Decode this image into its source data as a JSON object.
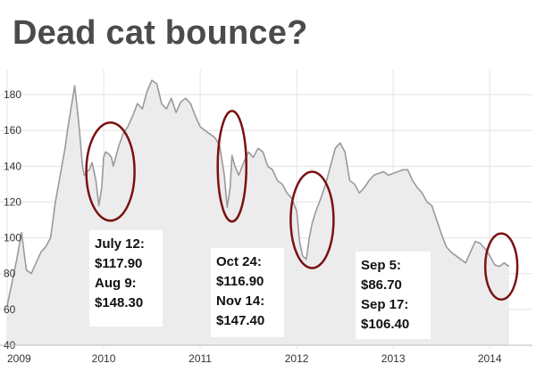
{
  "title": "Dead cat bounce?",
  "colors": {
    "line": "#9a9a9a",
    "area": "#ececec",
    "grid": "#e3e3e3",
    "circle": "#7a1212",
    "annotation_bg": "#ffffff"
  },
  "chart_data": {
    "type": "area",
    "title": "Dead cat bounce?",
    "xlabel": "",
    "ylabel": "",
    "xlim": [
      2009.0,
      2014.35
    ],
    "ylim": [
      40,
      190
    ],
    "grid": true,
    "legend": "none",
    "y_ticks": [
      40,
      60,
      80,
      100,
      120,
      140,
      160,
      180
    ],
    "x_ticks": [
      {
        "value": 2009.0,
        "label": "2009"
      },
      {
        "value": 2010.0,
        "label": "2010"
      },
      {
        "value": 2011.0,
        "label": "2011"
      },
      {
        "value": 2012.0,
        "label": "2012"
      },
      {
        "value": 2013.0,
        "label": "2013"
      },
      {
        "value": 2014.0,
        "label": "2014"
      }
    ],
    "series": [
      {
        "x": [
          2009.0,
          2009.05,
          2009.1,
          2009.15,
          2009.18,
          2009.2,
          2009.25,
          2009.3,
          2009.35,
          2009.4,
          2009.45,
          2009.5,
          2009.55,
          2009.6,
          2009.63,
          2009.67,
          2009.7,
          2009.73,
          2009.75,
          2009.78,
          2009.8,
          2009.85,
          2009.88,
          2009.92,
          2009.95,
          2009.98,
          2010.0,
          2010.02,
          2010.05,
          2010.08,
          2010.1,
          2010.15,
          2010.2,
          2010.25,
          2010.3,
          2010.35,
          2010.4,
          2010.45,
          2010.5,
          2010.55,
          2010.6,
          2010.65,
          2010.7,
          2010.75,
          2010.8,
          2010.85,
          2010.9,
          2010.95,
          2011.0,
          2011.05,
          2011.1,
          2011.15,
          2011.2,
          2011.25,
          2011.28,
          2011.31,
          2011.33,
          2011.36,
          2011.4,
          2011.45,
          2011.5,
          2011.55,
          2011.6,
          2011.65,
          2011.7,
          2011.75,
          2011.8,
          2011.85,
          2011.9,
          2011.95,
          2012.0,
          2012.03,
          2012.06,
          2012.1,
          2012.13,
          2012.16,
          2012.2,
          2012.25,
          2012.3,
          2012.35,
          2012.4,
          2012.45,
          2012.5,
          2012.55,
          2012.6,
          2012.65,
          2012.7,
          2012.75,
          2012.8,
          2012.85,
          2012.9,
          2012.95,
          2013.0,
          2013.05,
          2013.1,
          2013.15,
          2013.2,
          2013.25,
          2013.3,
          2013.35,
          2013.4,
          2013.45,
          2013.5,
          2013.55,
          2013.6,
          2013.65,
          2013.7,
          2013.75,
          2013.8,
          2013.85,
          2013.9,
          2013.95,
          2014.0,
          2014.05,
          2014.1,
          2014.15,
          2014.2
        ],
        "y": [
          62,
          75,
          88,
          103,
          90,
          82,
          80,
          86,
          92,
          95,
          100,
          120,
          135,
          150,
          162,
          175,
          185,
          170,
          160,
          140,
          135,
          138,
          142,
          132,
          118,
          128,
          145,
          148,
          147,
          145,
          140,
          150,
          158,
          162,
          168,
          175,
          172,
          182,
          188,
          186,
          175,
          172,
          178,
          170,
          176,
          178,
          175,
          168,
          162,
          160,
          158,
          156,
          152,
          135,
          117,
          128,
          146,
          140,
          135,
          142,
          148,
          145,
          150,
          148,
          140,
          138,
          132,
          130,
          125,
          122,
          115,
          98,
          90,
          88,
          100,
          108,
          115,
          122,
          130,
          140,
          150,
          153,
          148,
          132,
          130,
          125,
          128,
          132,
          135,
          136,
          137,
          135,
          136,
          137,
          138,
          138,
          132,
          128,
          125,
          120,
          118,
          110,
          102,
          95,
          92,
          90,
          88,
          86,
          92,
          98,
          97,
          94,
          90,
          85,
          84,
          86,
          84
        ]
      }
    ],
    "annotations": [
      {
        "lines": [
          "July 12:",
          "$117.90",
          "Aug 9:",
          "$148.30"
        ]
      },
      {
        "lines": [
          "Oct 24:",
          "$116.90",
          "Nov 14:",
          "$147.40"
        ]
      },
      {
        "lines": [
          "Sep 5:",
          "$86.70",
          "Sep 17:",
          "$106.40"
        ]
      }
    ]
  }
}
